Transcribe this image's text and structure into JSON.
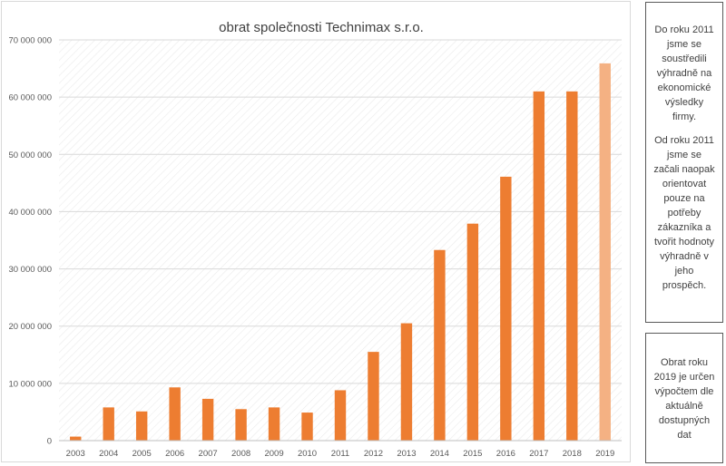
{
  "chart_data": {
    "type": "bar",
    "title": "obrat společnosti Technimax s.r.o.",
    "xlabel": "",
    "ylabel": "",
    "categories": [
      "2003",
      "2004",
      "2005",
      "2006",
      "2007",
      "2008",
      "2009",
      "2010",
      "2011",
      "2012",
      "2013",
      "2014",
      "2015",
      "2016",
      "2017",
      "2018",
      "2019"
    ],
    "values": [
      700000,
      5800000,
      5100000,
      9300000,
      7300000,
      5500000,
      5800000,
      4900000,
      8800000,
      15500000,
      20500000,
      33300000,
      37900000,
      46100000,
      61000000,
      61000000,
      65900000
    ],
    "estimated_categories": [
      "2019"
    ],
    "ylim": [
      0,
      70000000
    ],
    "yticks": [
      0,
      10000000,
      20000000,
      30000000,
      40000000,
      50000000,
      60000000,
      70000000
    ],
    "ytick_labels": [
      "0",
      "10 000 000",
      "20 000 000",
      "30 000 000",
      "40 000 000",
      "50 000 000",
      "60 000 000",
      "70 000 000"
    ],
    "grid": true,
    "colors": {
      "bar": "#ed7d31",
      "bar_estimated": "#f4b183",
      "grid": "#d9d9d9"
    }
  },
  "notes": {
    "top_paragraph_1": "Do roku 2011 jsme se soustředili výhradně na ekonomické výsledky firmy.",
    "top_paragraph_2": "Od roku 2011 jsme se začali naopak orientovat pouze na potřeby zákazníka a tvořit hodnoty výhradně v jeho prospěch.",
    "bottom": "Obrat roku 2019 je určen výpočtem dle aktuálně dostupných dat"
  }
}
